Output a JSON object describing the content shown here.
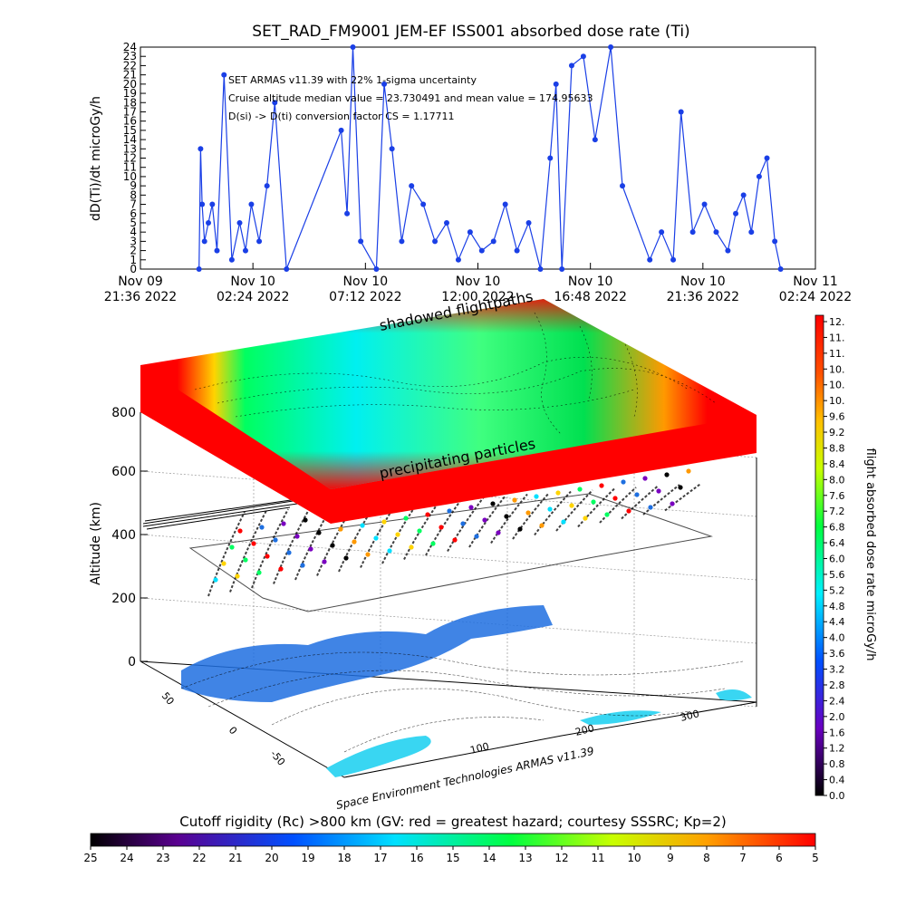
{
  "top_chart": {
    "title": "SET_RAD_FM9001  JEM-EF ISS001 absorbed dose rate (Ti)",
    "ylabel": "dD(Ti)/dt microGy/h",
    "annotations": [
      "SET ARMAS v11.39 with 22% 1-sigma uncertainty",
      "Cruise altitude median value = 23.730491 and mean value = 174.95633",
      "D(si) -> D(ti) conversion factor CS = 1.17711"
    ],
    "xticks": [
      {
        "date": "Nov 09",
        "time": "21:36 2022"
      },
      {
        "date": "Nov 10",
        "time": "02:24 2022"
      },
      {
        "date": "Nov 10",
        "time": "07:12 2022"
      },
      {
        "date": "Nov 10",
        "time": "12:00 2022"
      },
      {
        "date": "Nov 10",
        "time": "16:48 2022"
      },
      {
        "date": "Nov 10",
        "time": "21:36 2022"
      },
      {
        "date": "Nov 11",
        "time": "02:24 2022"
      }
    ],
    "yticks": [
      "0",
      "1",
      "2",
      "3",
      "4",
      "5",
      "6",
      "7",
      "8",
      "9",
      "10",
      "11",
      "12",
      "13",
      "14",
      "15",
      "16",
      "17",
      "18",
      "19",
      "20",
      "21",
      "22",
      "23",
      "24"
    ]
  },
  "chart_data": [
    {
      "type": "line",
      "title": "SET_RAD_FM9001  JEM-EF ISS001 absorbed dose rate (Ti)",
      "ylabel": "dD(Ti)/dt microGy/h",
      "xlabel": "",
      "x_range": [
        "2022-11-09 21:36",
        "2022-11-11 02:24"
      ],
      "ylim": [
        0,
        24
      ],
      "series": [
        {
          "color": "#1a3fe6",
          "points": [
            [
              "2022-11-10 00:06",
              0
            ],
            [
              "2022-11-10 00:10",
              13
            ],
            [
              "2022-11-10 00:14",
              7
            ],
            [
              "2022-11-10 00:20",
              3
            ],
            [
              "2022-11-10 00:30",
              5
            ],
            [
              "2022-11-10 00:40",
              7
            ],
            [
              "2022-11-10 00:52",
              2
            ],
            [
              "2022-11-10 01:10",
              21
            ],
            [
              "2022-11-10 01:30",
              1
            ],
            [
              "2022-11-10 01:50",
              5
            ],
            [
              "2022-11-10 02:05",
              2
            ],
            [
              "2022-11-10 02:20",
              7
            ],
            [
              "2022-11-10 02:40",
              3
            ],
            [
              "2022-11-10 03:00",
              9
            ],
            [
              "2022-11-10 03:20",
              18
            ],
            [
              "2022-11-10 03:50",
              0
            ],
            [
              "2022-11-10 06:10",
              15
            ],
            [
              "2022-11-10 06:25",
              6
            ],
            [
              "2022-11-10 06:40",
              24
            ],
            [
              "2022-11-10 07:00",
              3
            ],
            [
              "2022-11-10 07:40",
              0
            ],
            [
              "2022-11-10 08:00",
              20
            ],
            [
              "2022-11-10 08:20",
              13
            ],
            [
              "2022-11-10 08:45",
              3
            ],
            [
              "2022-11-10 09:10",
              9
            ],
            [
              "2022-11-10 09:40",
              7
            ],
            [
              "2022-11-10 10:10",
              3
            ],
            [
              "2022-11-10 10:40",
              5
            ],
            [
              "2022-11-10 11:10",
              1
            ],
            [
              "2022-11-10 11:40",
              4
            ],
            [
              "2022-11-10 12:10",
              2
            ],
            [
              "2022-11-10 12:40",
              3
            ],
            [
              "2022-11-10 13:10",
              7
            ],
            [
              "2022-11-10 13:40",
              2
            ],
            [
              "2022-11-10 14:10",
              5
            ],
            [
              "2022-11-10 14:40",
              0
            ],
            [
              "2022-11-10 15:05",
              12
            ],
            [
              "2022-11-10 15:20",
              20
            ],
            [
              "2022-11-10 15:35",
              0
            ],
            [
              "2022-11-10 16:00",
              22
            ],
            [
              "2022-11-10 16:30",
              23
            ],
            [
              "2022-11-10 17:00",
              14
            ],
            [
              "2022-11-10 17:40",
              24
            ],
            [
              "2022-11-10 18:10",
              9
            ],
            [
              "2022-11-10 19:20",
              1
            ],
            [
              "2022-11-10 19:50",
              4
            ],
            [
              "2022-11-10 20:20",
              1
            ],
            [
              "2022-11-10 20:40",
              17
            ],
            [
              "2022-11-10 21:10",
              4
            ],
            [
              "2022-11-10 21:40",
              7
            ],
            [
              "2022-11-10 22:10",
              4
            ],
            [
              "2022-11-10 22:40",
              2
            ],
            [
              "2022-11-10 23:00",
              6
            ],
            [
              "2022-11-10 23:20",
              8
            ],
            [
              "2022-11-10 23:40",
              4
            ],
            [
              "2022-11-11 00:00",
              10
            ],
            [
              "2022-11-11 00:20",
              12
            ],
            [
              "2022-11-11 00:40",
              3
            ],
            [
              "2022-11-11 00:55",
              0
            ]
          ]
        }
      ]
    },
    {
      "type": "heatmap",
      "title": "",
      "ylabel": "Altitude (km)",
      "layer_labels": [
        "shadowed flightpaths",
        "precipitating particles"
      ],
      "credit": "Space Environment Technologies ARMAS v11.39",
      "z_ticks": [
        "0",
        "200",
        "400",
        "600",
        "800"
      ],
      "x_ticks": [
        "100",
        "200",
        "300"
      ],
      "y_ticks": [
        "50",
        "0",
        "-50"
      ]
    }
  ],
  "right_colorbar": {
    "label": "flight absorbed dose rate microGy/h",
    "ticks": [
      "12.",
      "11.",
      "11.",
      "10.",
      "10.",
      "10.",
      "9.6",
      "9.2",
      "8.8",
      "8.4",
      "8.0",
      "7.6",
      "7.2",
      "6.8",
      "6.4",
      "6.0",
      "5.6",
      "5.2",
      "4.8",
      "4.4",
      "4.0",
      "3.6",
      "3.2",
      "2.8",
      "2.4",
      "2.0",
      "1.6",
      "1.2",
      "0.8",
      "0.4",
      "0.0"
    ]
  },
  "bottom_colorbar": {
    "title": "Cutoff rigidity (Rc) >800 km (GV: red = greatest hazard; courtesy SSSRC; Kp=2)",
    "ticks": [
      "25",
      "24",
      "23",
      "22",
      "21",
      "20",
      "19",
      "18",
      "17",
      "16",
      "15",
      "14",
      "13",
      "12",
      "11",
      "10",
      "9",
      "8",
      "7",
      "6",
      "5"
    ]
  },
  "colors": {
    "trace": "#1a3fe6",
    "hazard": "#ff0000",
    "low": "#00ffff",
    "land": "#1e6fe0",
    "ocean": "#39d6f2"
  }
}
